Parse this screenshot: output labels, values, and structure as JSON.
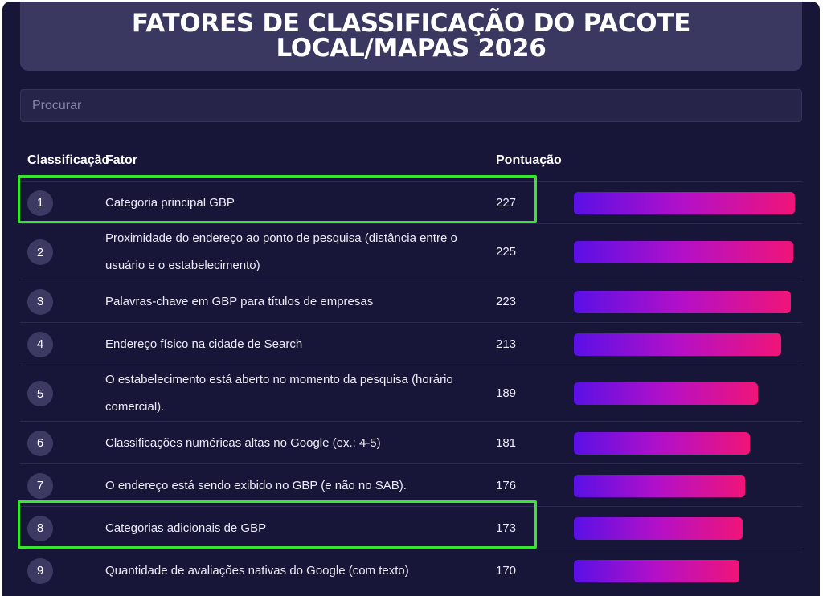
{
  "title": "FATORES DE CLASSIFICAÇÃO DO PACOTE LOCAL/MAPAS 2026",
  "search": {
    "placeholder": "Procurar"
  },
  "columns": {
    "rank": "Classificação",
    "factor": "Fator",
    "score": "Pontuação"
  },
  "max_score": 227,
  "colors": {
    "background": "#171538",
    "bar_start": "#5a10e6",
    "bar_end": "#f01478",
    "highlight": "#38e62e"
  },
  "rows": [
    {
      "rank": "1",
      "factor": "Categoria principal GBP",
      "score": 227,
      "highlighted": true
    },
    {
      "rank": "2",
      "factor": "Proximidade do endereço ao ponto de pesquisa (distância entre o usuário e o estabelecimento)",
      "score": 225,
      "highlighted": false
    },
    {
      "rank": "3",
      "factor": "Palavras-chave em GBP para títulos de empresas",
      "score": 223,
      "highlighted": false
    },
    {
      "rank": "4",
      "factor": "Endereço físico na cidade de Search",
      "score": 213,
      "highlighted": false
    },
    {
      "rank": "5",
      "factor": "O estabelecimento está aberto no momento da pesquisa (horário comercial).",
      "score": 189,
      "highlighted": false
    },
    {
      "rank": "6",
      "factor": "Classificações numéricas altas no Google (ex.: 4-5)",
      "score": 181,
      "highlighted": false
    },
    {
      "rank": "7",
      "factor": "O endereço está sendo exibido no GBP (e não no SAB).",
      "score": 176,
      "highlighted": false
    },
    {
      "rank": "8",
      "factor": "Categorias adicionais de GBP",
      "score": 173,
      "highlighted": true
    },
    {
      "rank": "9",
      "factor": "Quantidade de avaliações nativas do Google (com texto)",
      "score": 170,
      "highlighted": false
    }
  ]
}
